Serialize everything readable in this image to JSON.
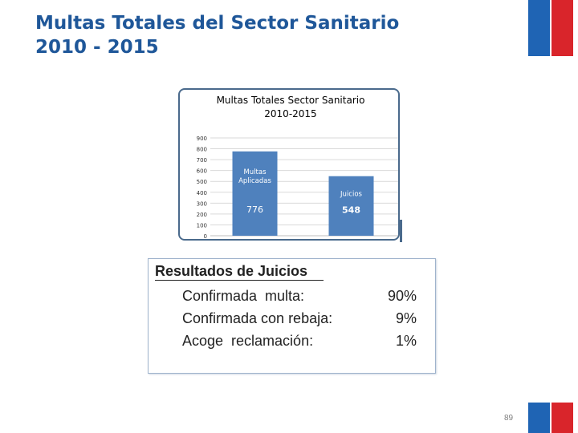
{
  "slide": {
    "title_line1": "Multas Totales del Sector Sanitario",
    "title_line2": "2010 - 2015",
    "page_number": "89"
  },
  "colors": {
    "title": "#1f5799",
    "bar": "#4f81bd",
    "flag_blue": "#1f64b4",
    "flag_red": "#d9252b"
  },
  "chart_data": {
    "type": "bar",
    "title_line1": "Multas Totales Sector Sanitario",
    "title_line2": "2010-2015",
    "categories": [
      "Multas Aplicadas",
      "Juicios"
    ],
    "category_label_lines": [
      [
        "Multas",
        "Aplicadas"
      ],
      [
        "Juicios"
      ]
    ],
    "values": [
      776,
      548
    ],
    "data_labels": [
      "776",
      "548"
    ],
    "ylim": [
      0,
      900
    ],
    "yticks": [
      0,
      100,
      200,
      300,
      400,
      500,
      600,
      700,
      800,
      900
    ],
    "grid": true,
    "legend": "none"
  },
  "results": {
    "title": "Resultados de Juicios",
    "rows": [
      {
        "label": "Confirmada  multa:",
        "value": "90%"
      },
      {
        "label": "Confirmada con rebaja:",
        "value": "9%"
      },
      {
        "label": "Acoge  reclamación:",
        "value": "1%"
      }
    ]
  }
}
